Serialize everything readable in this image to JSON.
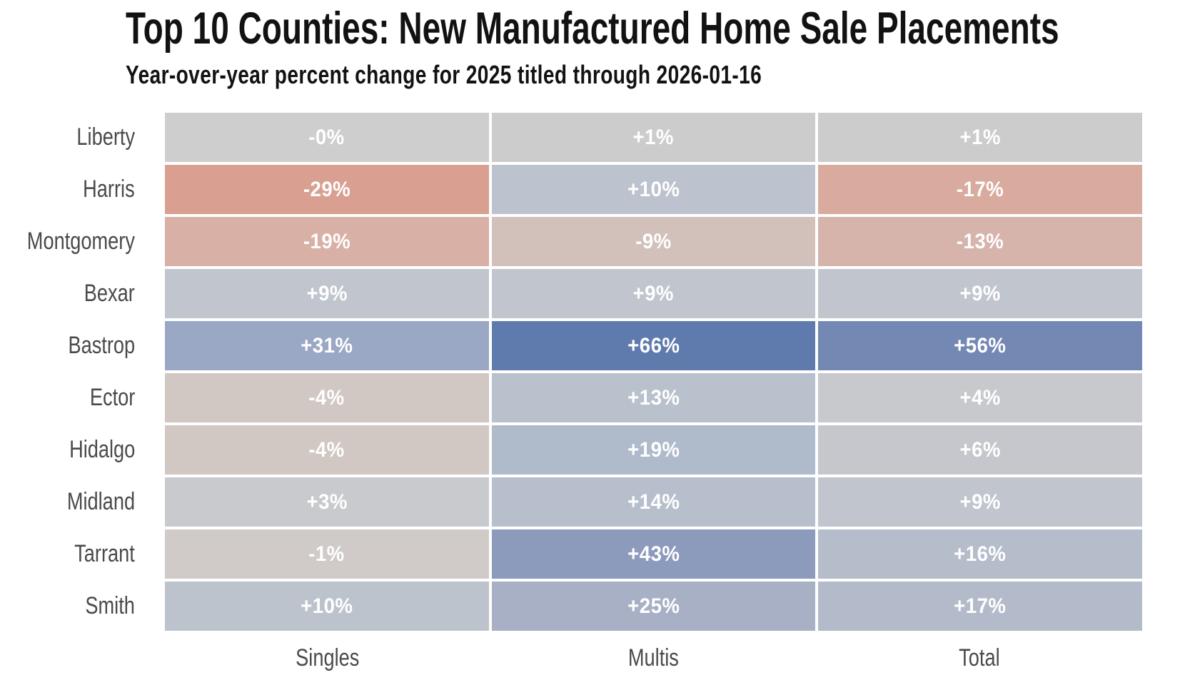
{
  "header": {
    "title": "Top 10 Counties: New Manufactured Home Sale Placements",
    "subtitle": "Year-over-year percent change for 2025 titled through 2026-01-16"
  },
  "style": {
    "background": "#ffffff",
    "title_color": "#121212",
    "axis_label_color": "#4a4a4a",
    "cell_text_color": "#ffffff",
    "grid_gap_color": "#ffffff",
    "colormap_negative_end": "#d9a092",
    "colormap_center": "#cdcdcd",
    "colormap_positive_end": "#5f7bad"
  },
  "chart_data": {
    "type": "heatmap",
    "title": "Top 10 Counties: New Manufactured Home Sale Placements",
    "subtitle": "Year-over-year percent change for 2025 titled through 2026-01-16",
    "value_unit": "percent change, year-over-year",
    "legend": "none",
    "gridlines": "white gaps between cells",
    "columns": [
      "Singles",
      "Multis",
      "Total"
    ],
    "rows": [
      {
        "county": "Liberty",
        "cells": [
          {
            "label": "-0%",
            "value": 0,
            "color": "#cecece"
          },
          {
            "label": "+1%",
            "value": 1,
            "color": "#cccccc"
          },
          {
            "label": "+1%",
            "value": 1,
            "color": "#cccccc"
          }
        ]
      },
      {
        "county": "Harris",
        "cells": [
          {
            "label": "-29%",
            "value": -29,
            "color": "#d9a092"
          },
          {
            "label": "+10%",
            "value": 10,
            "color": "#bdc3ce"
          },
          {
            "label": "-17%",
            "value": -17,
            "color": "#d9ab9e"
          }
        ]
      },
      {
        "county": "Montgomery",
        "cells": [
          {
            "label": "-19%",
            "value": -19,
            "color": "#d8b0a5"
          },
          {
            "label": "-9%",
            "value": -9,
            "color": "#d2c0ba"
          },
          {
            "label": "-13%",
            "value": -13,
            "color": "#d6b3ab"
          }
        ]
      },
      {
        "county": "Bexar",
        "cells": [
          {
            "label": "+9%",
            "value": 9,
            "color": "#c1c5ce"
          },
          {
            "label": "+9%",
            "value": 9,
            "color": "#c1c5ce"
          },
          {
            "label": "+9%",
            "value": 9,
            "color": "#c1c5ce"
          }
        ]
      },
      {
        "county": "Bastrop",
        "cells": [
          {
            "label": "+31%",
            "value": 31,
            "color": "#9aa7c5"
          },
          {
            "label": "+66%",
            "value": 66,
            "color": "#5f7bad"
          },
          {
            "label": "+56%",
            "value": 56,
            "color": "#7488b4"
          }
        ]
      },
      {
        "county": "Ector",
        "cells": [
          {
            "label": "-4%",
            "value": -4,
            "color": "#d1c7c3"
          },
          {
            "label": "+13%",
            "value": 13,
            "color": "#b9c1cd"
          },
          {
            "label": "+4%",
            "value": 4,
            "color": "#c7c9cc"
          }
        ]
      },
      {
        "county": "Hidalgo",
        "cells": [
          {
            "label": "-4%",
            "value": -4,
            "color": "#d1c7c3"
          },
          {
            "label": "+19%",
            "value": 19,
            "color": "#afbaca"
          },
          {
            "label": "+6%",
            "value": 6,
            "color": "#c5c7cc"
          }
        ]
      },
      {
        "county": "Midland",
        "cells": [
          {
            "label": "+3%",
            "value": 3,
            "color": "#c9cacd"
          },
          {
            "label": "+14%",
            "value": 14,
            "color": "#b8bfcc"
          },
          {
            "label": "+9%",
            "value": 9,
            "color": "#c1c5ce"
          }
        ]
      },
      {
        "county": "Tarrant",
        "cells": [
          {
            "label": "-1%",
            "value": -1,
            "color": "#d0cbc9"
          },
          {
            "label": "+43%",
            "value": 43,
            "color": "#8c9abc"
          },
          {
            "label": "+16%",
            "value": 16,
            "color": "#b5bdcb"
          }
        ]
      },
      {
        "county": "Smith",
        "cells": [
          {
            "label": "+10%",
            "value": 10,
            "color": "#bdc3cd"
          },
          {
            "label": "+25%",
            "value": 25,
            "color": "#a7b0c4"
          },
          {
            "label": "+17%",
            "value": 17,
            "color": "#b3bbca"
          }
        ]
      }
    ]
  }
}
